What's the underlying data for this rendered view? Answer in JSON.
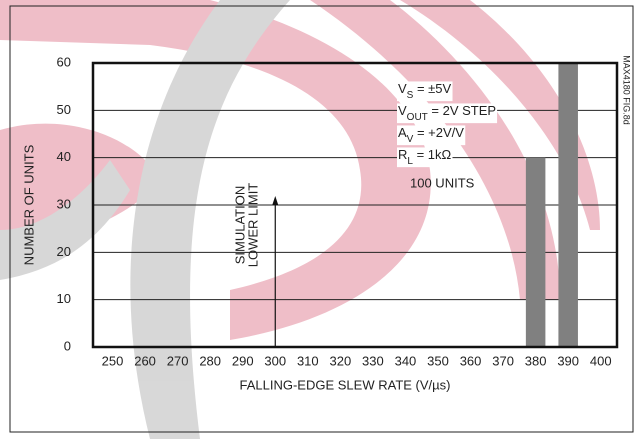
{
  "chart_data": {
    "type": "bar",
    "x": [
      380,
      390
    ],
    "values": [
      40,
      60
    ],
    "color": "#808080",
    "xlim": [
      244,
      405
    ],
    "xticks": [
      250,
      260,
      270,
      280,
      290,
      300,
      310,
      320,
      330,
      340,
      350,
      360,
      370,
      380,
      390,
      400
    ],
    "ylim": [
      0,
      60
    ],
    "yticks": [
      0,
      10,
      20,
      30,
      40,
      50,
      60
    ],
    "grid": true,
    "xlabel": "FALLING-EDGE SLEW RATE (V/µs)",
    "ylabel": "NUMBER OF UNITS",
    "conditions": [
      [
        {
          "text": "V"
        },
        {
          "text": "S",
          "sub": true
        },
        {
          "text": " = ±5V"
        }
      ],
      [
        {
          "text": "V"
        },
        {
          "text": "OUT",
          "sub": true
        },
        {
          "text": " = 2V STEP"
        }
      ],
      [
        {
          "text": "A"
        },
        {
          "text": "V",
          "sub": true
        },
        {
          "text": " = +2V/V"
        }
      ],
      [
        {
          "text": "R"
        },
        {
          "text": "L",
          "sub": true
        },
        {
          "text": " = 1kΩ"
        }
      ]
    ],
    "units_note": "100 UNITS",
    "lower_limit": 300,
    "lower_limit_label": [
      "SIMULATION",
      "LOWER LIMIT"
    ],
    "figure_id": "MAX4180 FIG.8d"
  }
}
